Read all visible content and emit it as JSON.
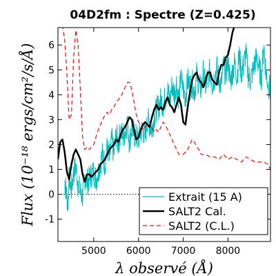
{
  "chart_data": {
    "type": "line",
    "title": "04D2fm : Spectre (Z=0.425)",
    "xlabel": "λ observé (Å)",
    "ylabel": "Flux (10⁻¹⁸ ergs/cm²/s/Å)",
    "xlim": [
      4200,
      8950
    ],
    "ylim": [
      -1.9,
      6.7
    ],
    "x_ticks": [
      5000,
      6000,
      7000,
      8000
    ],
    "y_ticks": [
      6,
      5,
      4,
      3,
      2,
      1,
      0,
      -1
    ],
    "y_tick_labels": [
      "6",
      "5",
      "4",
      "3",
      "2",
      "1",
      "0",
      "-1"
    ],
    "grid": false,
    "legend": "bottom-right",
    "zero_line": true,
    "series": [
      {
        "name": "Extrait (15 A)",
        "color": "#00bfbf",
        "style": "solid",
        "noisy": true,
        "x": [
          4350,
          4380,
          4420,
          4450,
          4500,
          4550,
          4600,
          4650,
          4700,
          4750,
          4800,
          4850,
          4900,
          4950,
          5000,
          5050,
          5100,
          5150,
          5200,
          5250,
          5300,
          5350,
          5400,
          5450,
          5500,
          5550,
          5600,
          5650,
          5700,
          5750,
          5800,
          5850,
          5900,
          5950,
          6000,
          6050,
          6100,
          6150,
          6200,
          6250,
          6300,
          6350,
          6400,
          6450,
          6500,
          6550,
          6600,
          6650,
          6700,
          6750,
          6800,
          6850,
          6900,
          6950,
          7000,
          7050,
          7100,
          7150,
          7200,
          7250,
          7300,
          7350,
          7400,
          7450,
          7500,
          7550,
          7600,
          7650,
          7700,
          7750,
          7800,
          7850,
          7900,
          7950,
          8000,
          8050,
          8100,
          8150,
          8200,
          8250,
          8300,
          8350,
          8400,
          8450,
          8500,
          8550,
          8600,
          8650,
          8700,
          8750,
          8800,
          8850,
          8900,
          8950
        ],
        "y": [
          0.5,
          0.2,
          -0.4,
          0.7,
          0.2,
          0.9,
          1.1,
          0.4,
          0.1,
          -0.1,
          0.7,
          0.5,
          0.6,
          0.8,
          0.9,
          0.6,
          0.9,
          1.3,
          1.6,
          1.2,
          1.9,
          1.4,
          2.2,
          1.6,
          2.4,
          2.0,
          2.6,
          2.3,
          2.5,
          2.9,
          2.1,
          2.7,
          2.4,
          2.3,
          2.2,
          2.5,
          2.6,
          2.3,
          3.0,
          2.8,
          2.6,
          3.1,
          3.4,
          3.5,
          3.8,
          3.6,
          3.9,
          4.2,
          3.7,
          4.4,
          4.0,
          4.5,
          3.8,
          4.7,
          4.2,
          3.9,
          4.6,
          4.3,
          4.5,
          4.1,
          4.8,
          4.4,
          4.2,
          4.9,
          4.3,
          4.6,
          5.0,
          4.4,
          4.7,
          5.1,
          4.6,
          4.4,
          5.2,
          4.8,
          5.4,
          4.5,
          4.9,
          5.3,
          4.7,
          5.6,
          4.9,
          5.2,
          5.7,
          4.8,
          4.6,
          4.9,
          5.3,
          5.5,
          5.0,
          4.7,
          6.0,
          4.9,
          4.4,
          4.2
        ]
      },
      {
        "name": "SALT2 Cal.",
        "color": "#000000",
        "style": "solid",
        "noisy": false,
        "x": [
          4200,
          4250,
          4300,
          4350,
          4400,
          4450,
          4500,
          4550,
          4600,
          4650,
          4700,
          4750,
          4800,
          4850,
          4900,
          4950,
          5000,
          5050,
          5100,
          5150,
          5200,
          5250,
          5300,
          5350,
          5400,
          5450,
          5500,
          5550,
          5600,
          5650,
          5700,
          5750,
          5800,
          5850,
          5900,
          5950,
          6000,
          6050,
          6100,
          6150,
          6200,
          6250,
          6300,
          6350,
          6400,
          6450,
          6500,
          6550,
          6600,
          6650,
          6700,
          6750,
          6800,
          6850,
          6900,
          6950,
          7000,
          7050,
          7100,
          7150,
          7200,
          7250,
          7300,
          7350,
          7400,
          7450,
          7500,
          7550,
          7600,
          7650,
          7700,
          7750,
          7800,
          7850,
          7900,
          7950,
          8000,
          8050,
          8100,
          8150,
          8200
        ],
        "y": [
          1.4,
          2.1,
          2.2,
          1.7,
          0.9,
          0.6,
          1.2,
          1.6,
          1.8,
          1.6,
          1.4,
          0.8,
          0.5,
          0.8,
          0.8,
          0.7,
          0.8,
          0.9,
          1.0,
          1.2,
          1.3,
          1.4,
          1.6,
          1.8,
          1.9,
          2.0,
          2.2,
          2.1,
          2.4,
          2.6,
          2.7,
          2.9,
          3.1,
          3.0,
          2.6,
          2.2,
          2.3,
          2.6,
          2.8,
          2.9,
          2.8,
          2.7,
          3.1,
          3.4,
          3.6,
          3.4,
          3.5,
          3.4,
          3.7,
          3.9,
          3.6,
          3.5,
          3.3,
          3.6,
          3.9,
          3.6,
          2.9,
          2.8,
          3.5,
          4.1,
          4.6,
          4.8,
          4.9,
          4.6,
          4.5,
          4.3,
          4.6,
          4.9,
          4.9,
          4.6,
          4.5,
          4.4,
          4.9,
          5.2,
          5.2,
          5.5,
          5.6,
          6.0,
          6.5,
          6.8,
          7.0
        ]
      },
      {
        "name": "SALT2 (C.L.)",
        "color": "#ff0000",
        "style": "dashed",
        "noisy": false,
        "x": [
          4300,
          4350,
          4400,
          4450,
          4500,
          4550,
          4600,
          4650,
          4700,
          4750,
          4800,
          4850,
          4900,
          4950,
          5000,
          5050,
          5100,
          5150,
          5200,
          5250,
          5300,
          5350,
          5400,
          5450,
          5500,
          5550,
          5600,
          5650,
          5700,
          5750,
          5800,
          5850,
          5900,
          5950,
          6000,
          6050,
          6100,
          6150,
          6200,
          6250,
          6300,
          6350,
          6400,
          6450,
          6500,
          6550,
          6600,
          6650,
          6700,
          6750,
          6800,
          6850,
          6900,
          6950,
          7000,
          7050,
          7100,
          7150,
          7200,
          7250,
          7300,
          7350,
          7400,
          7450,
          7500,
          7600,
          7700,
          7800,
          7900,
          8000,
          8100,
          8200,
          8300,
          8400,
          8500,
          8600,
          8700,
          8800,
          8900,
          8950
        ],
        "y": [
          6.8,
          6.2,
          4.8,
          3.0,
          3.2,
          5.5,
          6.6,
          6.0,
          4.2,
          2.3,
          1.8,
          1.9,
          1.8,
          1.9,
          2.0,
          2.3,
          2.6,
          2.8,
          3.0,
          3.2,
          3.3,
          3.2,
          3.4,
          3.5,
          3.7,
          3.8,
          3.9,
          4.1,
          4.3,
          4.5,
          4.5,
          4.2,
          3.7,
          3.2,
          2.9,
          2.8,
          2.6,
          2.7,
          2.8,
          2.9,
          2.7,
          2.5,
          2.6,
          2.5,
          2.7,
          2.9,
          2.8,
          2.6,
          2.4,
          2.2,
          2.0,
          1.8,
          1.6,
          1.6,
          1.6,
          1.7,
          1.8,
          2.0,
          2.2,
          2.1,
          1.9,
          1.8,
          1.6,
          1.6,
          1.6,
          1.5,
          1.5,
          1.4,
          1.6,
          1.4,
          1.5,
          1.4,
          1.3,
          1.5,
          1.4,
          1.3,
          1.3,
          1.3,
          1.2,
          1.0
        ]
      }
    ]
  }
}
